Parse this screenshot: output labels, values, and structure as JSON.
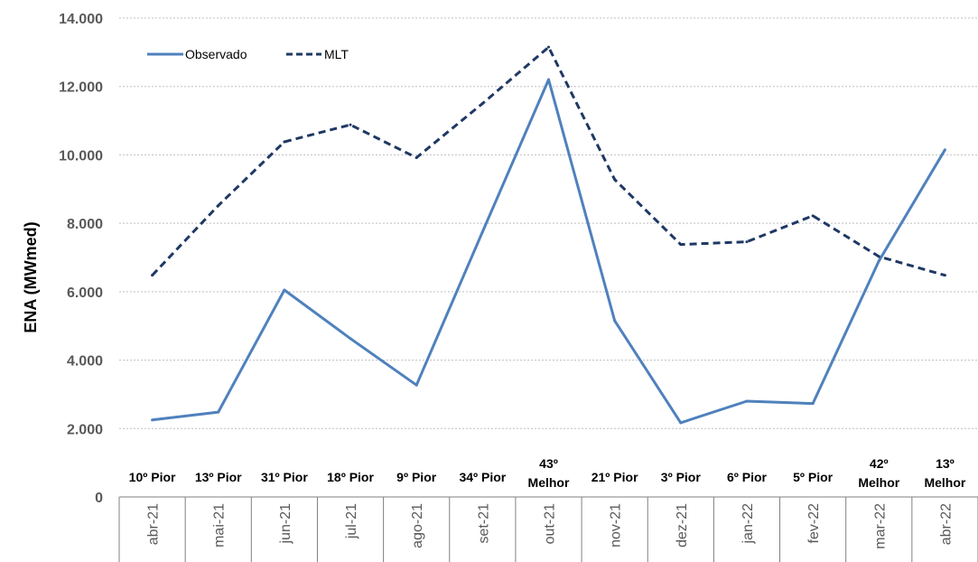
{
  "chart_data": {
    "type": "line",
    "ylabel": "ENA (MWmed)",
    "xlabel": "",
    "ylim": [
      0,
      14000
    ],
    "yticks": [
      0,
      2000,
      4000,
      6000,
      8000,
      10000,
      12000,
      14000
    ],
    "ytick_labels": [
      "0",
      "2.000",
      "4.000",
      "6.000",
      "8.000",
      "10.000",
      "12.000",
      "14.000"
    ],
    "categories": [
      "abr-21",
      "mai-21",
      "jun-21",
      "jul-21",
      "ago-21",
      "set-21",
      "out-21",
      "nov-21",
      "dez-21",
      "jan-22",
      "fev-22",
      "mar-22",
      "abr-22"
    ],
    "rank_labels": [
      [
        "10º Pior"
      ],
      [
        "13º Pior"
      ],
      [
        "31º Pior"
      ],
      [
        "18º Pior"
      ],
      [
        "9º Pior"
      ],
      [
        "34º Pior"
      ],
      [
        "43º",
        "Melhor"
      ],
      [
        "21º Pior"
      ],
      [
        "3º Pior"
      ],
      [
        "6º Pior"
      ],
      [
        "5º Pior"
      ],
      [
        "42º",
        "Melhor"
      ],
      [
        "13º",
        "Melhor"
      ]
    ],
    "series": [
      {
        "name": "Observado",
        "style": "solid",
        "color": "#4F81BD",
        "values": [
          2250,
          2480,
          6050,
          4630,
          3270,
          7750,
          12200,
          5150,
          2170,
          2800,
          2730,
          6900,
          10150
        ]
      },
      {
        "name": "MLT",
        "style": "dashed",
        "color": "#1F3864",
        "values": [
          6480,
          8520,
          10380,
          10880,
          9920,
          11500,
          13150,
          9280,
          7380,
          7460,
          8220,
          7030,
          6480
        ]
      }
    ],
    "grid": true,
    "legend": "top-left"
  }
}
